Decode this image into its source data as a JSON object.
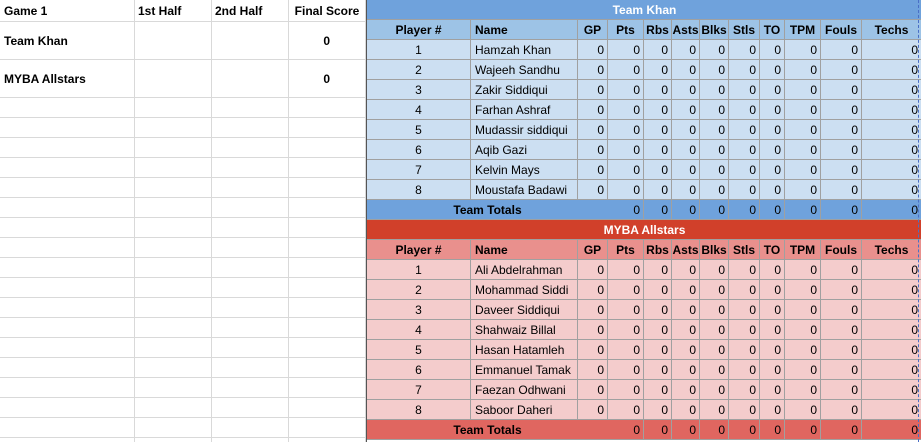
{
  "score": {
    "headers": [
      "Game 1",
      "1st Half",
      "2nd Half",
      "Final Score"
    ],
    "rows": [
      {
        "team": "Team Khan",
        "first": "",
        "second": "",
        "final": "0"
      },
      {
        "team": "MYBA Allstars",
        "first": "",
        "second": "",
        "final": "0"
      }
    ]
  },
  "columns": [
    "Player #",
    "Name",
    "GP",
    "Pts",
    "Rbs",
    "Asts",
    "Blks",
    "Stls",
    "TO",
    "TPM",
    "Fouls",
    "Techs"
  ],
  "teams": [
    {
      "title": "Team Khan",
      "players": [
        {
          "num": "1",
          "name": "Hamzah Khan"
        },
        {
          "num": "2",
          "name": "Wajeeh Sandhu"
        },
        {
          "num": "3",
          "name": "Zakir Siddiqui"
        },
        {
          "num": "4",
          "name": "Farhan Ashraf"
        },
        {
          "num": "5",
          "name": "Mudassir siddiqui"
        },
        {
          "num": "6",
          "name": "Aqib Gazi"
        },
        {
          "num": "7",
          "name": "Kelvin Mays"
        },
        {
          "num": "8",
          "name": "Moustafa Badawi"
        }
      ],
      "totals_label": "Team Totals"
    },
    {
      "title": "MYBA Allstars",
      "players": [
        {
          "num": "1",
          "name": "Ali Abdelrahman"
        },
        {
          "num": "2",
          "name": "Mohammad Siddi"
        },
        {
          "num": "3",
          "name": "Daveer Siddiqui"
        },
        {
          "num": "4",
          "name": "Shahwaiz Billal"
        },
        {
          "num": "5",
          "name": "Hasan Hatamleh"
        },
        {
          "num": "6",
          "name": "Emmanuel Tamak"
        },
        {
          "num": "7",
          "name": "Faezan Odhwani"
        },
        {
          "num": "8",
          "name": "Saboor Daheri"
        }
      ],
      "totals_label": "Team Totals"
    }
  ],
  "stat_value": "0"
}
